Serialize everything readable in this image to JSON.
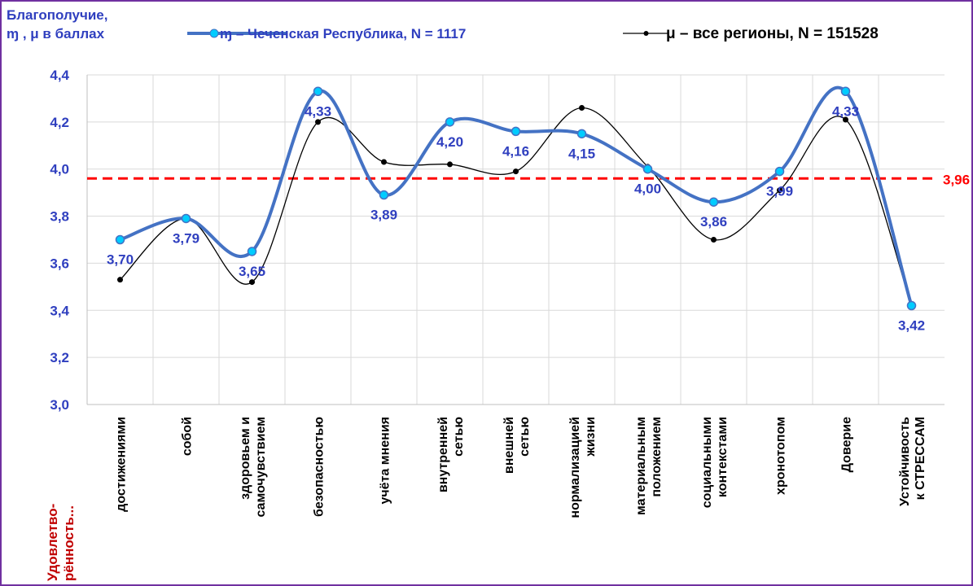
{
  "chart_data": {
    "type": "line",
    "title": "Благополучие,\nɱ , μ в баллах",
    "y_caption": "Удовлетво-\nрённость...",
    "categories": [
      "достижениями",
      "собой",
      "здоровьем и\nсамочувствием",
      "безопасностью",
      "учёта мнения",
      "внутренней\nсетью",
      "внешней\nсетью",
      "нормализацией\nжизни",
      "материальным\nположением",
      "социальными\nконтекстами",
      "хронотопом",
      "Доверие",
      "Устойчивость\nк СТРЕССАМ"
    ],
    "series": [
      {
        "name": "ɱ  –  Чеченская Республика,  N = 1117",
        "color": "#4472c4",
        "values": [
          3.7,
          3.79,
          3.65,
          4.33,
          3.89,
          4.2,
          4.16,
          4.15,
          4.0,
          3.86,
          3.99,
          4.33,
          3.42
        ],
        "value_labels": [
          "3,70",
          "3,79",
          "3,65",
          "4,33",
          "3,89",
          "4,20",
          "4,16",
          "4,15",
          "4,00",
          "3,86",
          "3,99",
          "4,33",
          "3,42"
        ]
      },
      {
        "name": "μ – все регионы, N = 151528",
        "color": "#000000",
        "values": [
          3.53,
          3.79,
          3.52,
          4.2,
          4.03,
          4.02,
          3.99,
          4.26,
          4.01,
          3.7,
          3.91,
          4.21,
          3.42
        ]
      }
    ],
    "reference": {
      "value": 3.96,
      "label": "3,96",
      "color": "#ff0000"
    },
    "ylim": [
      3.0,
      4.4
    ],
    "yticks": [
      {
        "value": 3.0,
        "label": "3,0"
      },
      {
        "value": 3.2,
        "label": "3,2"
      },
      {
        "value": 3.4,
        "label": "3,4"
      },
      {
        "value": 3.6,
        "label": "3,6"
      },
      {
        "value": 3.8,
        "label": "3,8"
      },
      {
        "value": 4.0,
        "label": "4,0"
      },
      {
        "value": 4.2,
        "label": "4,2"
      },
      {
        "value": 4.4,
        "label": "4,4"
      }
    ],
    "grid": true
  }
}
